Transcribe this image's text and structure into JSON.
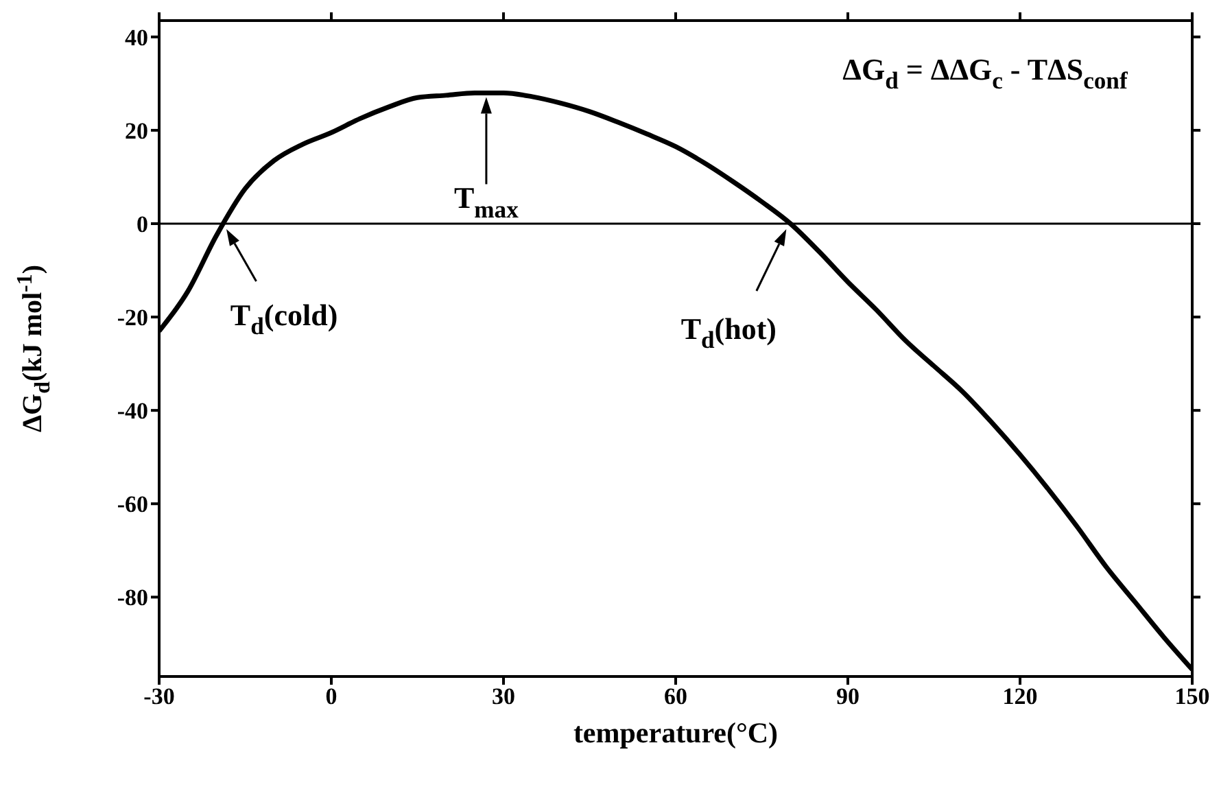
{
  "chart_data": {
    "type": "line",
    "xlabel": "temperature(°C)",
    "ylabel": "ΔG$_{d}$(kJ mol$^{-1}$)",
    "x": [
      -30,
      -25,
      -20,
      -15,
      -10,
      -5,
      0,
      5,
      10,
      15,
      20,
      25,
      30,
      35,
      40,
      45,
      50,
      55,
      60,
      65,
      70,
      75,
      80,
      85,
      90,
      95,
      100,
      105,
      110,
      115,
      120,
      125,
      130,
      135,
      140,
      145,
      150
    ],
    "series": [
      {
        "color": "#000000",
        "values": [
          -23,
          -14.5,
          -2.5,
          7.5,
          13.5,
          17,
          19.5,
          22.5,
          25,
          27,
          27.5,
          28,
          28,
          27.2,
          25.8,
          24,
          21.7,
          19.2,
          16.5,
          13,
          9,
          4.7,
          0,
          -6,
          -12.5,
          -18.5,
          -25,
          -30.5,
          -36,
          -42.5,
          -49.5,
          -57,
          -65,
          -73.5,
          -81,
          -88.5,
          -95.5
        ]
      }
    ],
    "xlim": [
      -30,
      150
    ],
    "xticks": [
      -30,
      0,
      30,
      60,
      90,
      120,
      150
    ],
    "ylim": [
      -97,
      43.5
    ],
    "yticks": [
      -80,
      -60,
      -40,
      -20,
      0,
      20,
      40
    ],
    "ref_lines": [
      {
        "axis": "y",
        "value": 0,
        "color": "#000000"
      }
    ],
    "annotations": [
      "ΔG$_{d}$ = ΔΔG$_{c}$ - TΔS$_{conf}$",
      {
        "text": "T$_{d}$(cold)",
        "x": -19,
        "y": 0
      },
      {
        "text": "T$_{max}$",
        "x": 27,
        "y": 28
      },
      {
        "text": "T$_{d}$(hot)",
        "x": 80,
        "y": 0
      }
    ],
    "marker": "none",
    "line_style": "solid"
  }
}
